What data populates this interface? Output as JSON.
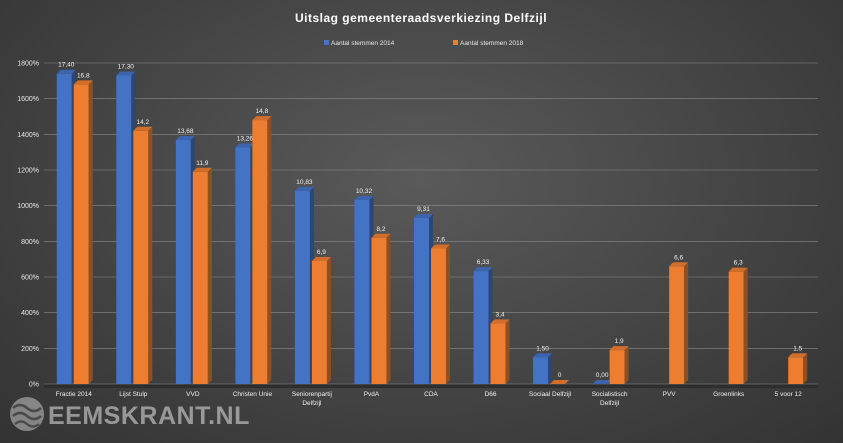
{
  "chart_data": {
    "type": "bar",
    "title": "Uitslag  gemeenteraadsverkiezing  Delfzijl",
    "categories": [
      "Fractie 2014",
      "Lijst Stulp",
      "VVD",
      "Christen Unie",
      "Seniorenpartij Delfzijl",
      "PvdA",
      "CDA",
      "D66",
      "Sociaal Delfzijl",
      "Socialistisch Delfzijl",
      "PVV",
      "Groenlinks",
      "5 voor 12"
    ],
    "series": [
      {
        "name": "Aantal stemmen 2014",
        "color": "#4472c4",
        "values": [
          17.4,
          17.3,
          13.68,
          13.26,
          10.83,
          10.32,
          9.31,
          6.33,
          1.5,
          0.0,
          null,
          null,
          null
        ],
        "labels": [
          "17,40",
          "17,30",
          "13,68",
          "13,26",
          "10,83",
          "10,32",
          "9,31",
          "6,33",
          "1,50",
          "0,00",
          "",
          "",
          ""
        ]
      },
      {
        "name": "Aantal stemmen 2018",
        "color": "#ed7d31",
        "values": [
          16.8,
          14.2,
          11.9,
          14.8,
          6.9,
          8.2,
          7.6,
          3.4,
          0,
          1.9,
          6.6,
          6.3,
          1.5
        ],
        "labels": [
          "16,8",
          "14,2",
          "11,9",
          "14,8",
          "6,9",
          "8,2",
          "7,6",
          "3,4",
          "0",
          "1,9",
          "6,6",
          "6,3",
          "1,5"
        ]
      }
    ],
    "yticks": [
      "0%",
      "200%",
      "400%",
      "600%",
      "800%",
      "1000%",
      "1200%",
      "1400%",
      "1600%",
      "1800%"
    ],
    "ylim": [
      0,
      18
    ],
    "grid": true,
    "legend": "top-center"
  },
  "watermark": {
    "brand": "EEMSKRANT.NL",
    "logo_icon": "wave-logo-icon"
  }
}
